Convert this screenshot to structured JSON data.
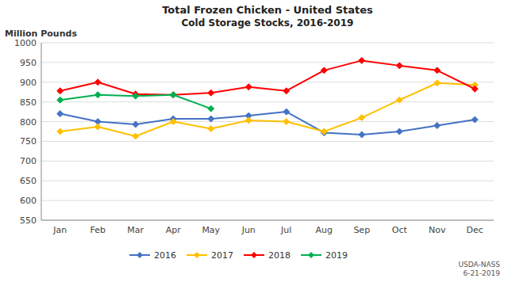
{
  "chart_data": {
    "type": "line",
    "title": "Total Frozen Chicken - United States",
    "subtitle": "Cold Storage Stocks, 2016-2019",
    "y_label": "Million Pounds",
    "annotation": "USDA-NASS\n6-21-2019",
    "categories": [
      "Jan",
      "Feb",
      "Mar",
      "Apr",
      "May",
      "Jun",
      "Jul",
      "Aug",
      "Sep",
      "Oct",
      "Nov",
      "Dec"
    ],
    "series": [
      {
        "name": "2016",
        "color": "#4472C4",
        "marker": "diamond",
        "values": [
          820,
          800,
          793,
          807,
          807,
          815,
          825,
          772,
          767,
          775,
          790,
          805
        ]
      },
      {
        "name": "2017",
        "color": "#FFC000",
        "marker": "diamond",
        "values": [
          775,
          787,
          763,
          800,
          782,
          803,
          800,
          775,
          810,
          855,
          898,
          893
        ]
      },
      {
        "name": "2018",
        "color": "#FF0000",
        "marker": "diamond",
        "values": [
          878,
          900,
          870,
          868,
          873,
          888,
          878,
          930,
          955,
          942,
          930,
          883
        ]
      },
      {
        "name": "2019",
        "color": "#00B050",
        "marker": "diamond",
        "values": [
          855,
          868,
          865,
          868,
          833,
          null,
          null,
          null,
          null,
          null,
          null,
          null
        ]
      }
    ],
    "ylim": [
      550,
      1000
    ],
    "yticks": [
      550,
      600,
      650,
      700,
      750,
      800,
      850,
      900,
      950,
      1000
    ],
    "grid": true,
    "legend": "bottom"
  }
}
